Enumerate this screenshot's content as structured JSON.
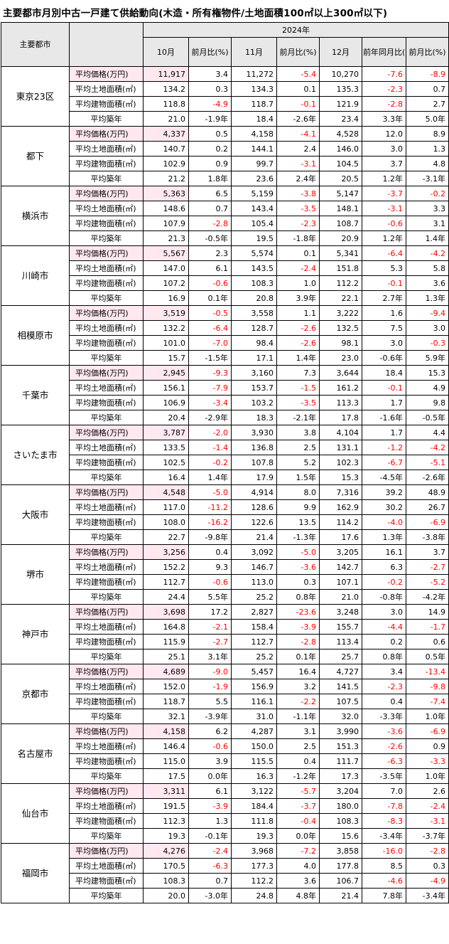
{
  "title": "主要都市月別中古一戸建て供給動向(木造・所有権物件/土地面積100㎡以上300㎡以下)",
  "colors": {
    "negative": "#ff0000",
    "price_row_bg": "#ffe8f0",
    "header_bg": "#e8e8e8"
  },
  "header": {
    "city_col": "主要都市",
    "year": "2024年",
    "oct": "10月",
    "nov": "11月",
    "dec": "12月",
    "mom": "前月比(%)",
    "yoy": "前年同月比(%)"
  },
  "metric_labels": [
    "平均価格(万円)",
    "平均土地面積(㎡)",
    "平均建物面積(㎡)",
    "平均築年"
  ],
  "cities": [
    {
      "name": "東京23区",
      "rows": [
        [
          "11,917",
          "3.4",
          "11,272",
          "-5.4",
          "10,270",
          "-7.6",
          "-8.9"
        ],
        [
          "134.2",
          "0.3",
          "134.3",
          "0.1",
          "135.3",
          "-2.3",
          "0.7"
        ],
        [
          "118.8",
          "-4.9",
          "118.7",
          "-0.1",
          "121.9",
          "-2.8",
          "2.7"
        ],
        [
          "21.0",
          "-1.9年",
          "18.4",
          "-2.6年",
          "23.4",
          "3.3年",
          "5.0年"
        ]
      ]
    },
    {
      "name": "都下",
      "rows": [
        [
          "4,337",
          "0.5",
          "4,158",
          "-4.1",
          "4,528",
          "12.0",
          "8.9"
        ],
        [
          "140.7",
          "0.2",
          "144.1",
          "2.4",
          "146.0",
          "3.0",
          "1.3"
        ],
        [
          "102.9",
          "0.9",
          "99.7",
          "-3.1",
          "104.5",
          "3.7",
          "4.8"
        ],
        [
          "21.2",
          "1.8年",
          "23.6",
          "2.4年",
          "20.5",
          "1.2年",
          "-3.1年"
        ]
      ]
    },
    {
      "name": "横浜市",
      "rows": [
        [
          "5,363",
          "6.5",
          "5,159",
          "-3.8",
          "5,147",
          "-3.7",
          "-0.2"
        ],
        [
          "148.6",
          "0.7",
          "143.4",
          "-3.5",
          "148.1",
          "-3.1",
          "3.3"
        ],
        [
          "107.9",
          "-2.8",
          "105.4",
          "-2.3",
          "108.7",
          "-0.6",
          "3.1"
        ],
        [
          "21.3",
          "-0.5年",
          "19.5",
          "-1.8年",
          "20.9",
          "1.2年",
          "1.4年"
        ]
      ]
    },
    {
      "name": "川崎市",
      "rows": [
        [
          "5,567",
          "2.3",
          "5,574",
          "0.1",
          "5,341",
          "-6.4",
          "-4.2"
        ],
        [
          "147.0",
          "6.1",
          "143.5",
          "-2.4",
          "151.8",
          "5.3",
          "5.8"
        ],
        [
          "107.2",
          "-0.6",
          "108.3",
          "1.0",
          "112.2",
          "-0.1",
          "3.6"
        ],
        [
          "16.9",
          "0.1年",
          "20.8",
          "3.9年",
          "22.1",
          "2.7年",
          "1.3年"
        ]
      ]
    },
    {
      "name": "相模原市",
      "rows": [
        [
          "3,519",
          "-0.5",
          "3,558",
          "1.1",
          "3,222",
          "1.6",
          "-9.4"
        ],
        [
          "132.2",
          "-6.4",
          "128.7",
          "-2.6",
          "132.5",
          "7.5",
          "3.0"
        ],
        [
          "101.0",
          "-7.0",
          "98.4",
          "-2.6",
          "98.1",
          "3.0",
          "-0.3"
        ],
        [
          "15.7",
          "-1.5年",
          "17.1",
          "1.4年",
          "23.0",
          "-0.6年",
          "5.9年"
        ]
      ]
    },
    {
      "name": "千葉市",
      "rows": [
        [
          "2,945",
          "-9.3",
          "3,160",
          "7.3",
          "3,644",
          "18.4",
          "15.3"
        ],
        [
          "156.1",
          "-7.9",
          "153.7",
          "-1.5",
          "161.2",
          "-0.1",
          "4.9"
        ],
        [
          "106.9",
          "-3.4",
          "103.2",
          "-3.5",
          "113.3",
          "1.7",
          "9.8"
        ],
        [
          "20.4",
          "-2.9年",
          "18.3",
          "-2.1年",
          "17.8",
          "-1.6年",
          "-0.5年"
        ]
      ]
    },
    {
      "name": "さいたま市",
      "rows": [
        [
          "3,787",
          "-2.0",
          "3,930",
          "3.8",
          "4,104",
          "1.7",
          "4.4"
        ],
        [
          "133.5",
          "-1.4",
          "136.8",
          "2.5",
          "131.1",
          "-1.2",
          "-4.2"
        ],
        [
          "102.5",
          "-0.2",
          "107.8",
          "5.2",
          "102.3",
          "-6.7",
          "-5.1"
        ],
        [
          "16.4",
          "1.4年",
          "17.9",
          "1.5年",
          "15.3",
          "-4.5年",
          "-2.6年"
        ]
      ]
    },
    {
      "name": "大阪市",
      "rows": [
        [
          "4,548",
          "-5.0",
          "4,914",
          "8.0",
          "7,316",
          "39.2",
          "48.9"
        ],
        [
          "117.0",
          "-11.2",
          "128.6",
          "9.9",
          "162.9",
          "30.2",
          "26.7"
        ],
        [
          "108.0",
          "-16.2",
          "122.6",
          "13.5",
          "114.2",
          "-4.0",
          "-6.9"
        ],
        [
          "22.7",
          "-9.8年",
          "21.4",
          "-1.3年",
          "17.6",
          "1.3年",
          "-3.8年"
        ]
      ]
    },
    {
      "name": "堺市",
      "rows": [
        [
          "3,256",
          "0.4",
          "3,092",
          "-5.0",
          "3,205",
          "16.1",
          "3.7"
        ],
        [
          "152.2",
          "9.3",
          "146.7",
          "-3.6",
          "142.7",
          "6.3",
          "-2.7"
        ],
        [
          "112.7",
          "-0.6",
          "113.0",
          "0.3",
          "107.1",
          "-0.2",
          "-5.2"
        ],
        [
          "24.4",
          "5.5年",
          "25.2",
          "0.8年",
          "21.0",
          "-0.8年",
          "-4.2年"
        ]
      ]
    },
    {
      "name": "神戸市",
      "rows": [
        [
          "3,698",
          "17.2",
          "2,827",
          "-23.6",
          "3,248",
          "3.0",
          "14.9"
        ],
        [
          "164.8",
          "-2.1",
          "158.4",
          "-3.9",
          "155.7",
          "-4.4",
          "-1.7"
        ],
        [
          "115.9",
          "-2.7",
          "112.7",
          "-2.8",
          "113.4",
          "0.2",
          "0.6"
        ],
        [
          "25.1",
          "3.1年",
          "25.2",
          "0.1年",
          "25.7",
          "0.8年",
          "0.5年"
        ]
      ]
    },
    {
      "name": "京都市",
      "rows": [
        [
          "4,689",
          "-9.0",
          "5,457",
          "16.4",
          "4,727",
          "3.4",
          "-13.4"
        ],
        [
          "152.0",
          "-1.9",
          "156.9",
          "3.2",
          "141.5",
          "-2.3",
          "-9.8"
        ],
        [
          "118.7",
          "5.5",
          "116.1",
          "-2.2",
          "107.5",
          "0.4",
          "-7.4"
        ],
        [
          "32.1",
          "-3.9年",
          "31.0",
          "-1.1年",
          "32.0",
          "-3.3年",
          "1.0年"
        ]
      ]
    },
    {
      "name": "名古屋市",
      "rows": [
        [
          "4,158",
          "6.2",
          "4,287",
          "3.1",
          "3,990",
          "-3.6",
          "-6.9"
        ],
        [
          "146.4",
          "-0.6",
          "150.0",
          "2.5",
          "151.3",
          "-2.6",
          "0.9"
        ],
        [
          "115.0",
          "3.9",
          "115.5",
          "0.4",
          "111.7",
          "-6.3",
          "-3.3"
        ],
        [
          "17.5",
          "0.0年",
          "16.3",
          "-1.2年",
          "17.3",
          "-3.5年",
          "1.0年"
        ]
      ]
    },
    {
      "name": "仙台市",
      "rows": [
        [
          "3,311",
          "6.1",
          "3,122",
          "-5.7",
          "3,204",
          "7.0",
          "2.6"
        ],
        [
          "191.5",
          "-3.9",
          "184.4",
          "-3.7",
          "180.0",
          "-7.8",
          "-2.4"
        ],
        [
          "112.3",
          "1.3",
          "111.8",
          "-0.4",
          "108.3",
          "-8.3",
          "-3.1"
        ],
        [
          "19.3",
          "-0.1年",
          "19.3",
          "0.0年",
          "15.6",
          "-3.4年",
          "-3.7年"
        ]
      ]
    },
    {
      "name": "福岡市",
      "rows": [
        [
          "4,276",
          "-2.4",
          "3,968",
          "-7.2",
          "3,858",
          "-16.0",
          "-2.8"
        ],
        [
          "170.5",
          "-6.3",
          "177.3",
          "4.0",
          "177.8",
          "8.5",
          "0.3"
        ],
        [
          "108.3",
          "0.7",
          "112.2",
          "3.6",
          "106.7",
          "-4.6",
          "-4.9"
        ],
        [
          "20.0",
          "-3.0年",
          "24.8",
          "4.8年",
          "21.4",
          "7.8年",
          "-3.4年"
        ]
      ]
    }
  ]
}
